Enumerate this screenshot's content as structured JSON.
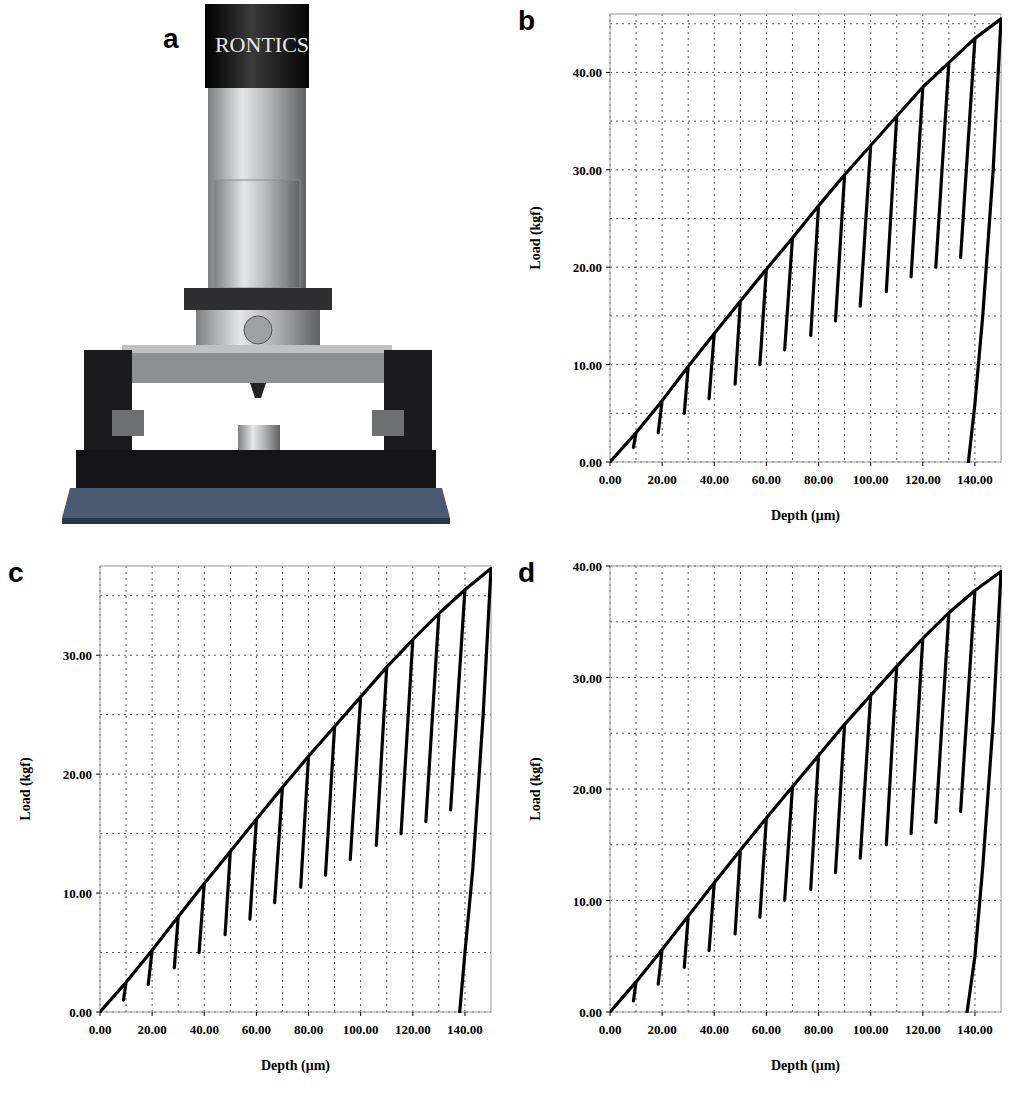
{
  "photo": {
    "label": "a",
    "brand": "RONTICS"
  },
  "chart_data": [
    {
      "type": "line",
      "panel": "b",
      "x_label": "Depth (μm)",
      "y_label": "Load (kgf)",
      "grid": true,
      "x": [
        0,
        10,
        9,
        10,
        20,
        18.5,
        20,
        30,
        28.5,
        30,
        40,
        38,
        40,
        50,
        48,
        50,
        60,
        57.5,
        60,
        70,
        67,
        70,
        80,
        77,
        80,
        90,
        86.5,
        90,
        100,
        96,
        100,
        110,
        106,
        110,
        120,
        115.5,
        120,
        130,
        125,
        130,
        140,
        134.5,
        140,
        150,
        147,
        143,
        140,
        137.5
      ],
      "series": [
        {
          "color": "#000000",
          "values": [
            0,
            3,
            1.5,
            3,
            6.3,
            3,
            6.3,
            9.8,
            5,
            9.8,
            13.2,
            6.5,
            13.2,
            16.5,
            8,
            16.5,
            19.8,
            10,
            19.8,
            23,
            11.5,
            23,
            26.3,
            13,
            26.3,
            29.5,
            14.5,
            29.5,
            32.5,
            16,
            32.5,
            35.5,
            17.5,
            35.5,
            38.5,
            19,
            38.5,
            41,
            20,
            41,
            43.5,
            21,
            43.5,
            45.5,
            30,
            15,
            6,
            0
          ]
        }
      ],
      "xlim": [
        0,
        150
      ],
      "xticks": [
        {
          "value": 0,
          "label": "0.00"
        },
        {
          "value": 20,
          "label": "20.00"
        },
        {
          "value": 40,
          "label": "40.00"
        },
        {
          "value": 60,
          "label": "60.00"
        },
        {
          "value": 80,
          "label": "80.00"
        },
        {
          "value": 100,
          "label": "100.00"
        },
        {
          "value": 120,
          "label": "120.00"
        },
        {
          "value": 140,
          "label": "140.00"
        }
      ],
      "ylim": [
        0,
        46
      ],
      "yticks": [
        {
          "value": 0,
          "label": "0.00"
        },
        {
          "value": 10,
          "label": "10.00"
        },
        {
          "value": 20,
          "label": "20.00"
        },
        {
          "value": 30,
          "label": "30.00"
        },
        {
          "value": 40,
          "label": "40.00"
        }
      ]
    },
    {
      "type": "line",
      "panel": "c",
      "x_label": "Depth (μm)",
      "y_label": "Load (kgf)",
      "grid": true,
      "x": [
        0,
        10,
        9,
        10,
        20,
        18.5,
        20,
        30,
        28.5,
        30,
        40,
        38,
        40,
        50,
        48,
        50,
        60,
        57.5,
        60,
        70,
        67,
        70,
        80,
        77,
        80,
        90,
        86.5,
        90,
        100,
        96,
        100,
        110,
        106,
        110,
        120,
        115.5,
        120,
        130,
        125,
        130,
        140,
        134.5,
        140,
        150,
        147,
        143,
        140,
        138
      ],
      "series": [
        {
          "color": "#000000",
          "values": [
            0,
            2.5,
            1,
            2.5,
            5.2,
            2.3,
            5.2,
            8,
            3.7,
            8,
            10.8,
            5,
            10.8,
            13.5,
            6.5,
            13.5,
            16.2,
            7.8,
            16.2,
            18.9,
            9.2,
            18.9,
            21.5,
            10.5,
            21.5,
            24,
            11.5,
            24,
            26.5,
            12.8,
            26.5,
            29,
            14,
            29,
            31.3,
            15,
            31.3,
            33.5,
            16,
            33.5,
            35.5,
            17,
            35.5,
            37.3,
            25,
            12,
            5,
            0
          ]
        }
      ],
      "xlim": [
        0,
        150
      ],
      "xticks": [
        {
          "value": 0,
          "label": "0.00"
        },
        {
          "value": 20,
          "label": "20.00"
        },
        {
          "value": 40,
          "label": "40.00"
        },
        {
          "value": 60,
          "label": "60.00"
        },
        {
          "value": 80,
          "label": "80.00"
        },
        {
          "value": 100,
          "label": "100.00"
        },
        {
          "value": 120,
          "label": "120.00"
        },
        {
          "value": 140,
          "label": "140.00"
        }
      ],
      "ylim": [
        0,
        37.5
      ],
      "yticks": [
        {
          "value": 0,
          "label": "0.00"
        },
        {
          "value": 10,
          "label": "10.00"
        },
        {
          "value": 20,
          "label": "20.00"
        },
        {
          "value": 30,
          "label": "30.00"
        }
      ]
    },
    {
      "type": "line",
      "panel": "d",
      "x_label": "Depth (μm)",
      "y_label": "Load (kgf)",
      "grid": true,
      "x": [
        0,
        10,
        9,
        10,
        20,
        18.5,
        20,
        30,
        28.5,
        30,
        40,
        38,
        40,
        50,
        48,
        50,
        60,
        57.5,
        60,
        70,
        67,
        70,
        80,
        77,
        80,
        90,
        86.5,
        90,
        100,
        96,
        100,
        110,
        106,
        110,
        120,
        115.5,
        120,
        130,
        125,
        130,
        140,
        134.5,
        140,
        150,
        147,
        143,
        140,
        137
      ],
      "series": [
        {
          "color": "#000000",
          "values": [
            0,
            2.7,
            1,
            2.7,
            5.6,
            2.5,
            5.6,
            8.6,
            4,
            8.6,
            11.6,
            5.5,
            11.6,
            14.5,
            7,
            14.5,
            17.4,
            8.5,
            17.4,
            20.2,
            10,
            20.2,
            23,
            11,
            23,
            25.8,
            12.5,
            25.8,
            28.4,
            13.8,
            28.4,
            31,
            15,
            31,
            33.5,
            16,
            33.5,
            35.8,
            17,
            35.8,
            37.8,
            18,
            37.8,
            39.5,
            26,
            13,
            5,
            0
          ]
        }
      ],
      "xlim": [
        0,
        150
      ],
      "xticks": [
        {
          "value": 0,
          "label": "0.00"
        },
        {
          "value": 20,
          "label": "20.00"
        },
        {
          "value": 40,
          "label": "40.00"
        },
        {
          "value": 60,
          "label": "60.00"
        },
        {
          "value": 80,
          "label": "80.00"
        },
        {
          "value": 100,
          "label": "100.00"
        },
        {
          "value": 120,
          "label": "120.00"
        },
        {
          "value": 140,
          "label": "140.00"
        }
      ],
      "ylim": [
        0,
        40
      ],
      "yticks": [
        {
          "value": 0,
          "label": "0.00"
        },
        {
          "value": 10,
          "label": "10.00"
        },
        {
          "value": 20,
          "label": "20.00"
        },
        {
          "value": 30,
          "label": "30.00"
        },
        {
          "value": 40,
          "label": "40.00"
        }
      ]
    }
  ]
}
